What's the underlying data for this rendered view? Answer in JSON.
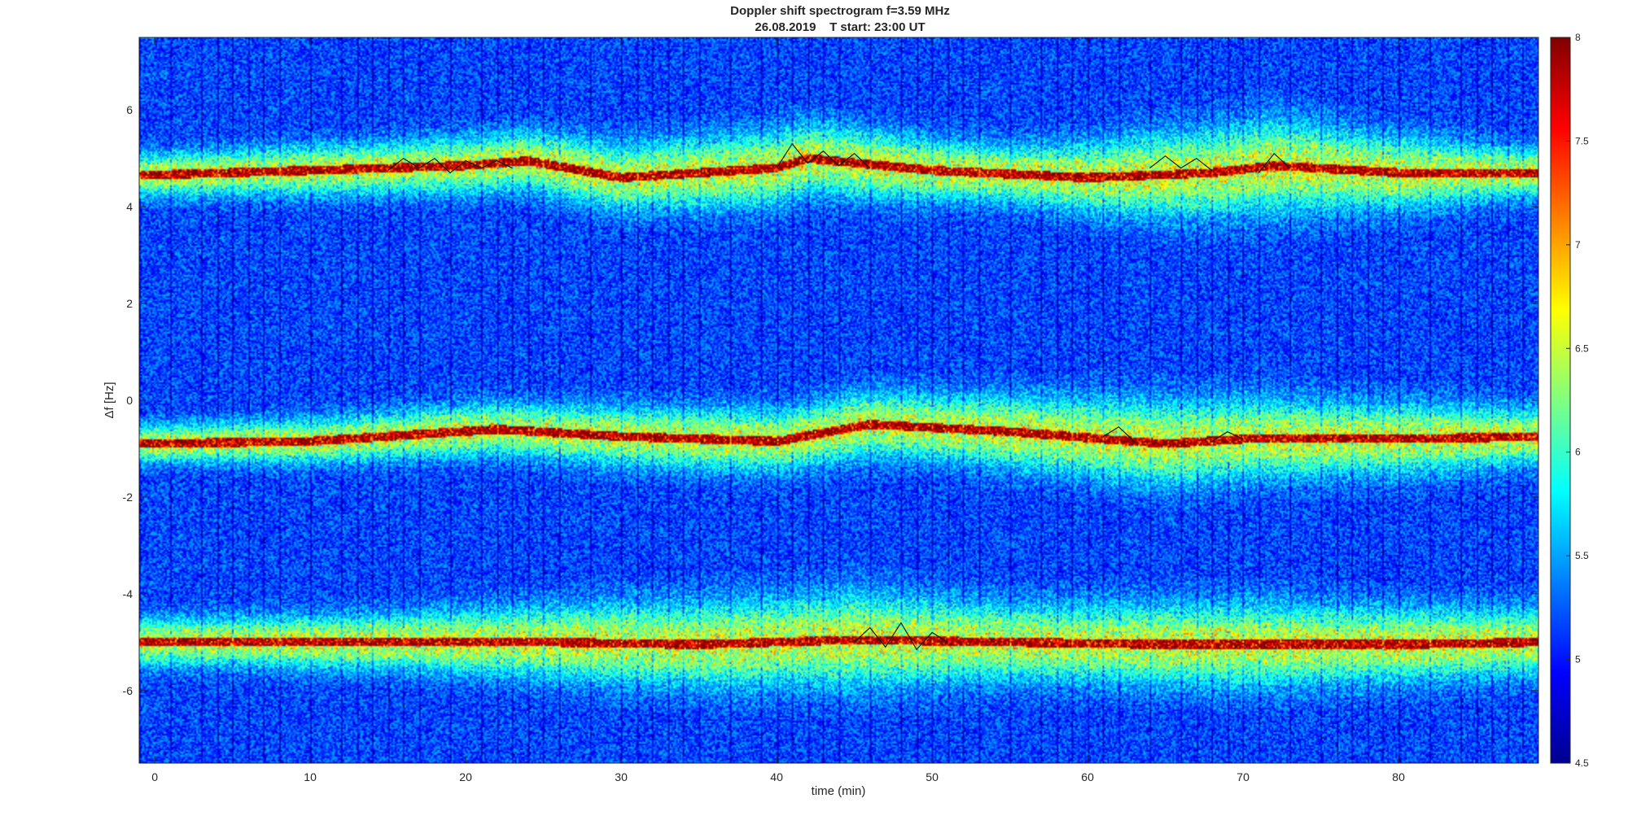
{
  "chart_data": {
    "type": "heatmap",
    "title": "Doppler shift spectrogram f=3.59 MHz",
    "subtitle": "26.08.2019    T start: 23:00 UT",
    "xlabel": "time (min)",
    "ylabel": "Δf [Hz]",
    "xlim": [
      -1,
      89
    ],
    "ylim": [
      -7.5,
      7.5
    ],
    "x_ticks": [
      "0",
      "10",
      "20",
      "30",
      "40",
      "50",
      "60",
      "70",
      "80"
    ],
    "x_tick_values": [
      0,
      10,
      20,
      30,
      40,
      50,
      60,
      70,
      80
    ],
    "y_ticks": [
      "6",
      "4",
      "2",
      "0",
      "-2",
      "-4",
      "-6"
    ],
    "y_tick_values": [
      6,
      4,
      2,
      0,
      -2,
      -4,
      -6
    ],
    "colorbar": {
      "colormap": "jet",
      "range": [
        4.5,
        8
      ],
      "ticks": [
        "8",
        "7.5",
        "7",
        "6.5",
        "6",
        "5.5",
        "5",
        "4.5"
      ],
      "tick_values": [
        8,
        7.5,
        7,
        6.5,
        6,
        5.5,
        5,
        4.5
      ]
    },
    "background_level": 5.0,
    "grid": false,
    "series": [
      {
        "band_center_hz": [
          [
            -1,
            4.65
          ],
          [
            10,
            4.75
          ],
          [
            20,
            4.85
          ],
          [
            24,
            4.95
          ],
          [
            30,
            4.6
          ],
          [
            40,
            4.8
          ],
          [
            42,
            5.0
          ],
          [
            50,
            4.75
          ],
          [
            60,
            4.6
          ],
          [
            68,
            4.7
          ],
          [
            72,
            4.85
          ],
          [
            80,
            4.7
          ],
          [
            89,
            4.7
          ]
        ],
        "band_halfwidth_hz": [
          [
            -1,
            0.45
          ],
          [
            20,
            0.6
          ],
          [
            40,
            0.8
          ],
          [
            55,
            0.6
          ],
          [
            65,
            0.9
          ],
          [
            72,
            1.0
          ],
          [
            89,
            0.5
          ]
        ]
      },
      {
        "band_center_hz": [
          [
            -1,
            -0.9
          ],
          [
            10,
            -0.85
          ],
          [
            22,
            -0.6
          ],
          [
            30,
            -0.75
          ],
          [
            40,
            -0.85
          ],
          [
            46,
            -0.5
          ],
          [
            55,
            -0.65
          ],
          [
            65,
            -0.9
          ],
          [
            70,
            -0.8
          ],
          [
            80,
            -0.8
          ],
          [
            89,
            -0.75
          ]
        ],
        "band_halfwidth_hz": [
          [
            -1,
            0.4
          ],
          [
            20,
            0.55
          ],
          [
            35,
            0.65
          ],
          [
            50,
            0.7
          ],
          [
            65,
            0.9
          ],
          [
            80,
            0.75
          ],
          [
            89,
            0.6
          ]
        ]
      },
      {
        "band_center_hz": [
          [
            -1,
            -5.0
          ],
          [
            10,
            -5.0
          ],
          [
            25,
            -5.0
          ],
          [
            35,
            -5.05
          ],
          [
            45,
            -4.95
          ],
          [
            55,
            -5.0
          ],
          [
            65,
            -5.05
          ],
          [
            70,
            -5.05
          ],
          [
            80,
            -5.05
          ],
          [
            89,
            -5.0
          ]
        ],
        "band_halfwidth_hz": [
          [
            -1,
            0.5
          ],
          [
            15,
            0.6
          ],
          [
            30,
            0.85
          ],
          [
            45,
            1.0
          ],
          [
            55,
            0.8
          ],
          [
            70,
            0.9
          ],
          [
            89,
            0.7
          ]
        ]
      }
    ],
    "overlay_trace_points": [
      [
        [
          15,
          4.75
        ],
        [
          16,
          5.0
        ],
        [
          17,
          4.8
        ],
        [
          18,
          5.0
        ],
        [
          19,
          4.7
        ],
        [
          20,
          4.95
        ],
        [
          21,
          4.8
        ],
        [
          22,
          4.95
        ],
        [
          23,
          4.8
        ]
      ],
      [
        [
          40,
          4.8
        ],
        [
          41,
          5.3
        ],
        [
          42,
          4.9
        ],
        [
          43,
          5.15
        ],
        [
          44,
          4.85
        ],
        [
          45,
          5.1
        ],
        [
          46,
          4.8
        ]
      ],
      [
        [
          64,
          4.8
        ],
        [
          65,
          5.05
        ],
        [
          66,
          4.8
        ],
        [
          67,
          5.0
        ],
        [
          68,
          4.75
        ]
      ],
      [
        [
          71,
          4.7
        ],
        [
          72,
          5.1
        ],
        [
          73,
          4.8
        ]
      ],
      [
        [
          61,
          -0.75
        ],
        [
          62,
          -0.55
        ],
        [
          63,
          -0.85
        ]
      ],
      [
        [
          68,
          -0.85
        ],
        [
          69,
          -0.65
        ],
        [
          70,
          -0.8
        ]
      ],
      [
        [
          45,
          -5.0
        ],
        [
          46,
          -4.7
        ],
        [
          47,
          -5.1
        ],
        [
          48,
          -4.6
        ],
        [
          49,
          -5.15
        ],
        [
          50,
          -4.8
        ],
        [
          51,
          -5.0
        ]
      ]
    ]
  }
}
